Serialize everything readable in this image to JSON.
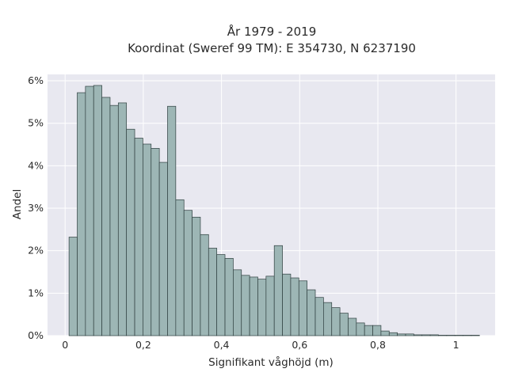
{
  "chart_data": {
    "type": "bar",
    "title_lines": [
      "År 1979 - 2019",
      "Koordinat (Sweref 99 TM): E 354730, N 6237190"
    ],
    "xlabel": "Signifikant våghöjd (m)",
    "ylabel": "Andel",
    "x_ticks": [
      {
        "value": 0,
        "label": "0"
      },
      {
        "value": 0.2,
        "label": "0,2"
      },
      {
        "value": 0.4,
        "label": "0,4"
      },
      {
        "value": 0.6,
        "label": "0,6"
      },
      {
        "value": 0.8,
        "label": "0,8"
      },
      {
        "value": 1.0,
        "label": "1"
      }
    ],
    "y_ticks": [
      {
        "value": 0,
        "label": "0%"
      },
      {
        "value": 1,
        "label": "1%"
      },
      {
        "value": 2,
        "label": "2%"
      },
      {
        "value": 3,
        "label": "3%"
      },
      {
        "value": 4,
        "label": "4%"
      },
      {
        "value": 5,
        "label": "5%"
      },
      {
        "value": 6,
        "label": "6%"
      }
    ],
    "xlim": [
      -0.045,
      1.1
    ],
    "ylim": [
      0,
      6.15
    ],
    "grid": true,
    "bar_color": "#9db6b5",
    "bar_edge_color": "#2f3f3f",
    "background_color": "#e8e8f0",
    "bin_width": 0.021,
    "bin_start": 0.01,
    "values": [
      2.32,
      5.72,
      5.87,
      5.89,
      5.61,
      5.42,
      5.48,
      4.86,
      4.65,
      4.51,
      4.41,
      4.08,
      5.4,
      3.2,
      2.95,
      2.79,
      2.38,
      2.06,
      1.91,
      1.82,
      1.55,
      1.42,
      1.38,
      1.33,
      1.4,
      2.12,
      1.45,
      1.36,
      1.29,
      1.08,
      0.9,
      0.78,
      0.66,
      0.53,
      0.41,
      0.3,
      0.24,
      0.24,
      0.11,
      0.07,
      0.04,
      0.04,
      0.02,
      0.02,
      0.02,
      0.01,
      0.01,
      0.01,
      0.01,
      0.01
    ]
  }
}
